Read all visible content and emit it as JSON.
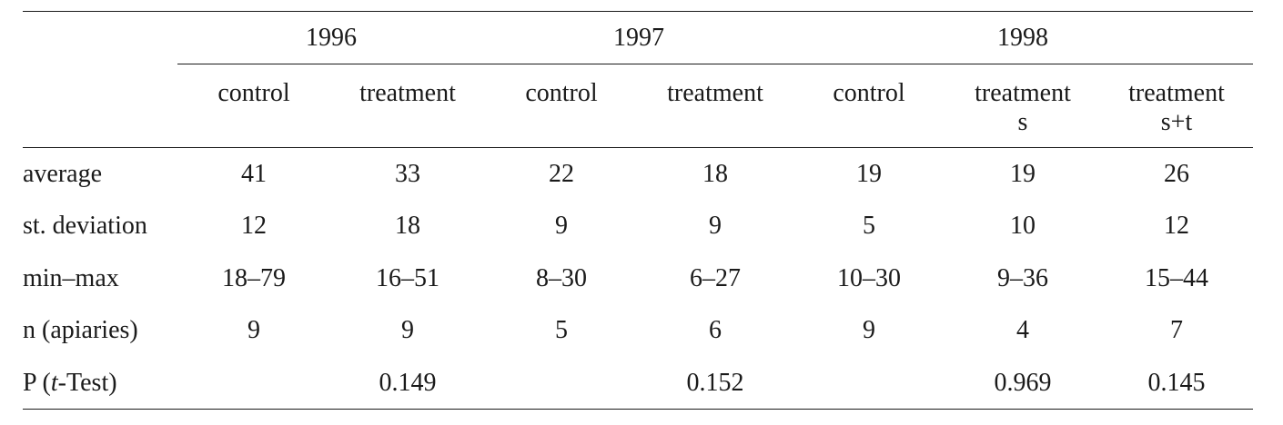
{
  "years": [
    "1996",
    "1997",
    "1998"
  ],
  "groups": [
    {
      "line1": "control",
      "line2": ""
    },
    {
      "line1": "treatment",
      "line2": ""
    },
    {
      "line1": "control",
      "line2": ""
    },
    {
      "line1": "treatment",
      "line2": ""
    },
    {
      "line1": "control",
      "line2": ""
    },
    {
      "line1": "treatment",
      "line2": "s"
    },
    {
      "line1": "treatment",
      "line2": "s+t"
    }
  ],
  "rows": [
    {
      "label": "average",
      "values": [
        "41",
        "33",
        "22",
        "18",
        "19",
        "19",
        "26"
      ]
    },
    {
      "label": "st. deviation",
      "values": [
        "12",
        "18",
        "9",
        "9",
        "5",
        "10",
        "12"
      ]
    },
    {
      "label": "min–max",
      "values": [
        "18–79",
        "16–51",
        "8–30",
        "6–27",
        "10–30",
        "9–36",
        "15–44"
      ]
    },
    {
      "label": "n (apiaries)",
      "values": [
        "9",
        "9",
        "5",
        "6",
        "9",
        "4",
        "7"
      ]
    }
  ],
  "ptest": {
    "label_prefix": "P (",
    "label_italic": "t",
    "label_suffix": "-Test)",
    "values": [
      "",
      "0.149",
      "",
      "0.152",
      "",
      "0.969",
      "0.145"
    ]
  }
}
